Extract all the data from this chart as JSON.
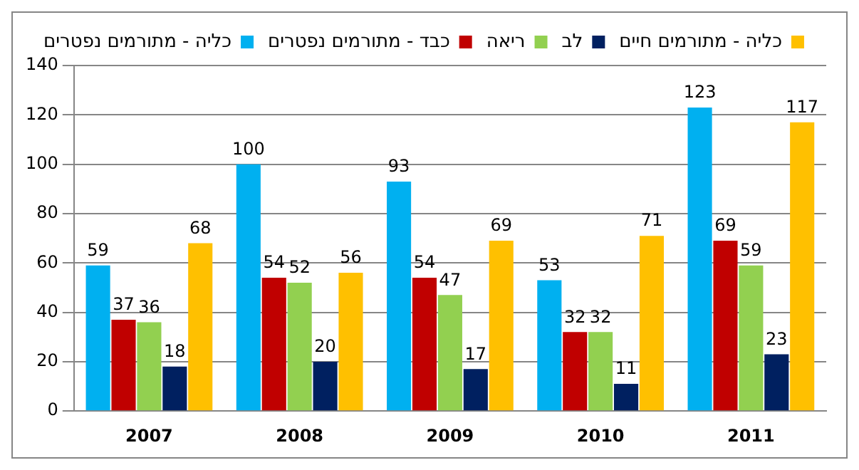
{
  "chart_data": {
    "type": "bar",
    "categories": [
      "2007",
      "2008",
      "2009",
      "2010",
      "2011"
    ],
    "series": [
      {
        "name": "כליה - מתורמים נפטרים",
        "color": "#00b0f0",
        "values": [
          59,
          100,
          93,
          53,
          123
        ]
      },
      {
        "name": "כבד - מתורמים נפטרים",
        "color": "#c00000",
        "values": [
          37,
          54,
          54,
          32,
          69
        ]
      },
      {
        "name": "ריאה",
        "color": "#92d050",
        "values": [
          36,
          52,
          47,
          32,
          59
        ]
      },
      {
        "name": "לב",
        "color": "#002060",
        "values": [
          18,
          20,
          17,
          11,
          23
        ]
      },
      {
        "name": "כליה - מתורמים חיים",
        "color": "#ffc000",
        "values": [
          68,
          56,
          69,
          71,
          117
        ]
      }
    ],
    "ylim": [
      0,
      140
    ],
    "yticks": [
      0,
      20,
      40,
      60,
      80,
      100,
      120,
      140
    ],
    "grid": "y",
    "legend": "top",
    "data_labels": true
  }
}
